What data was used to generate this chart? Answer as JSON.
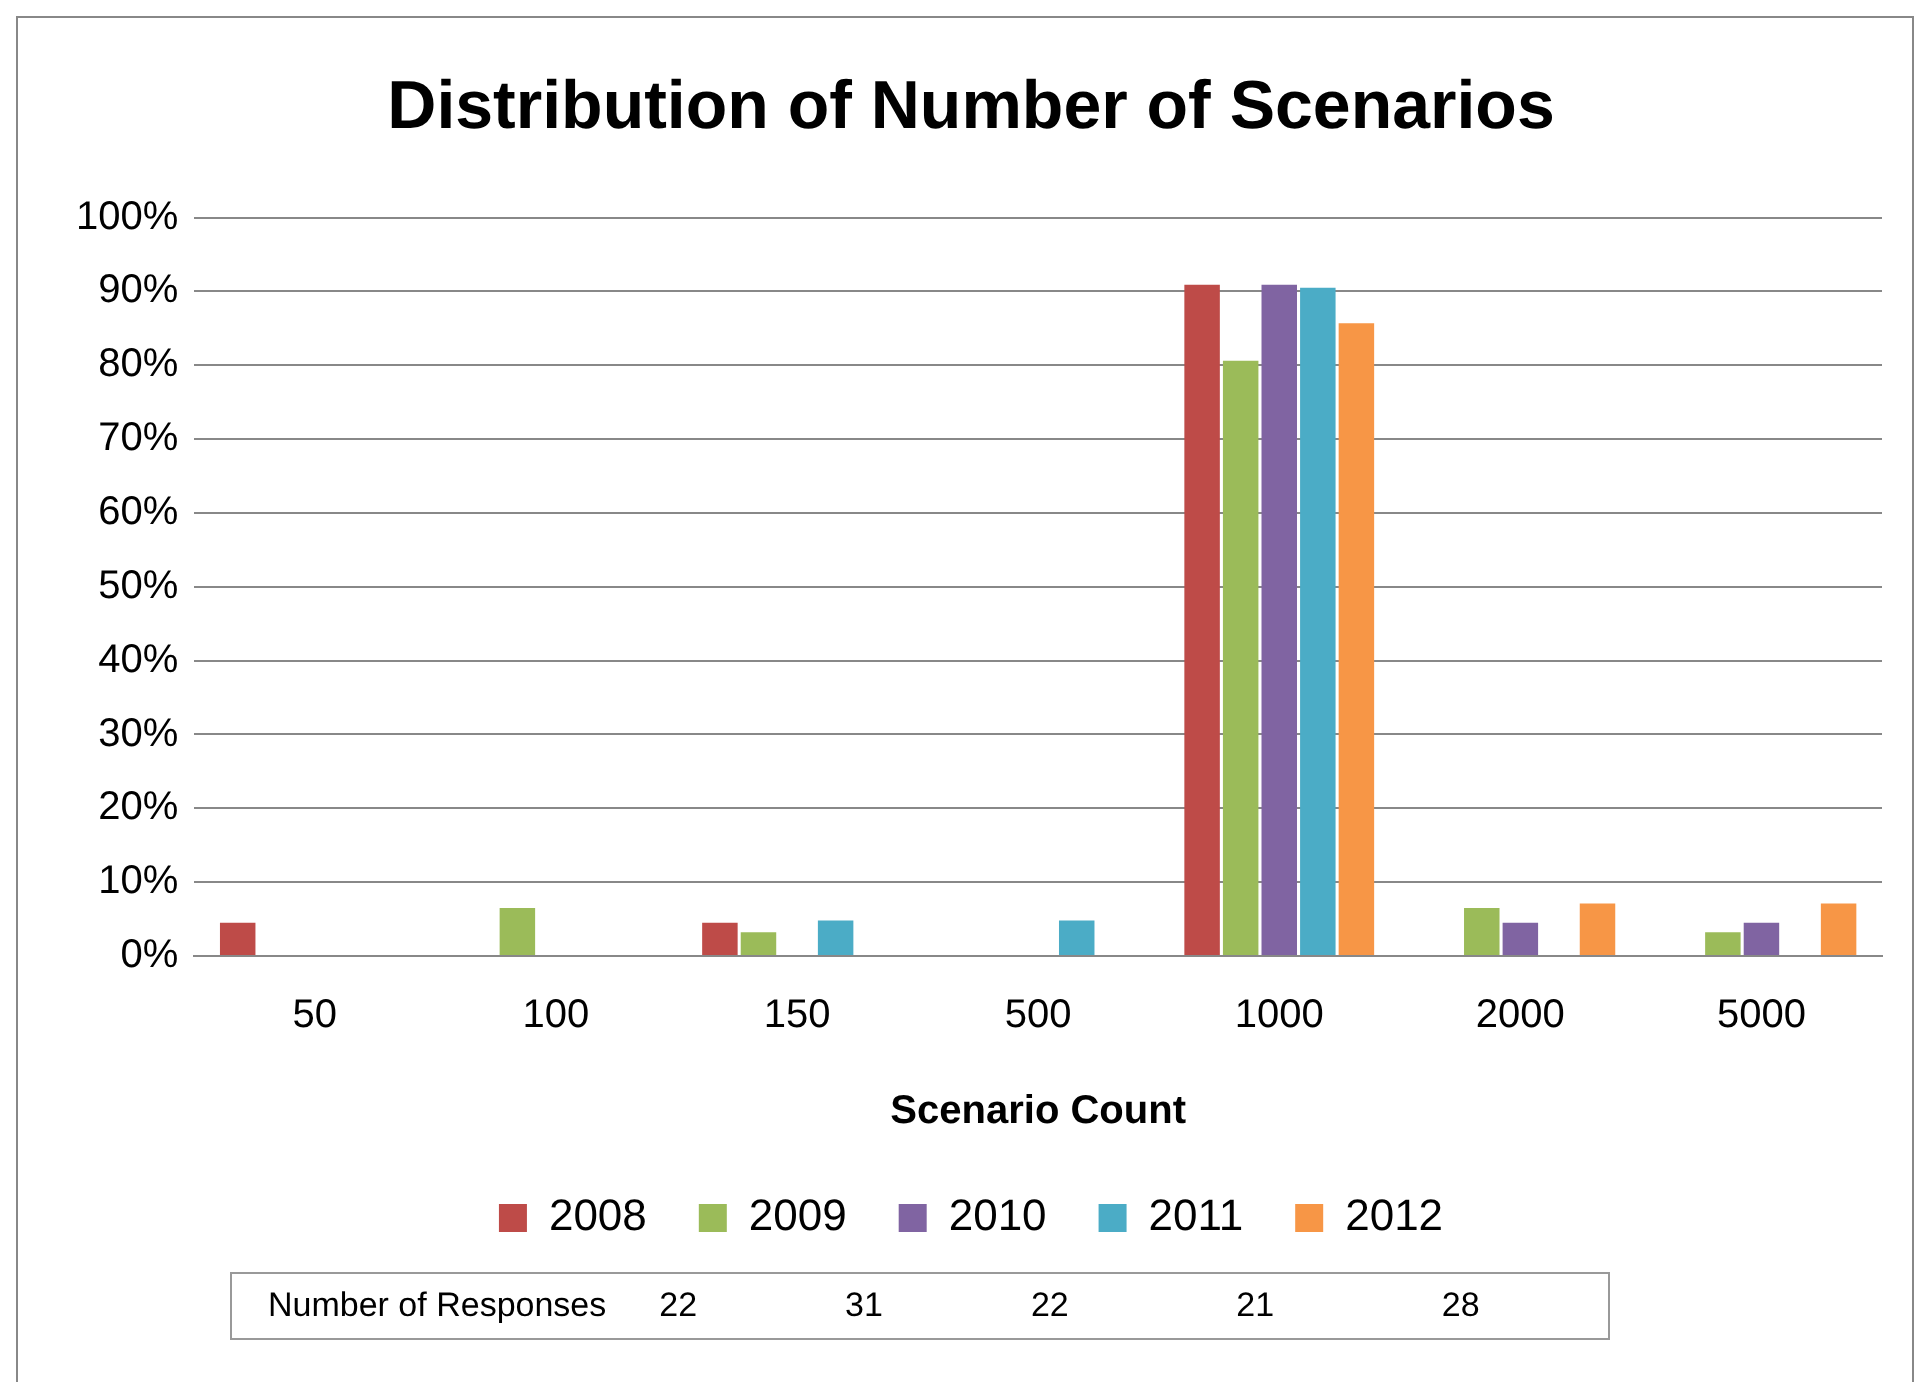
{
  "chart_data": {
    "type": "bar",
    "title": "Distribution of Number of Scenarios",
    "xlabel": "Scenario Count",
    "categories": [
      "50",
      "100",
      "150",
      "500",
      "1000",
      "2000",
      "5000"
    ],
    "series": [
      {
        "name": "2008",
        "color": "#be4b48",
        "values": [
          4.5,
          0,
          4.5,
          0,
          90.9,
          0,
          0
        ]
      },
      {
        "name": "2009",
        "color": "#9bbb59",
        "values": [
          0,
          6.5,
          3.2,
          0,
          80.6,
          6.5,
          3.2
        ]
      },
      {
        "name": "2010",
        "color": "#8064a2",
        "values": [
          0,
          0,
          0,
          0,
          90.9,
          4.5,
          4.5
        ]
      },
      {
        "name": "2011",
        "color": "#4bacc6",
        "values": [
          0,
          0,
          4.8,
          4.8,
          90.5,
          0,
          0
        ]
      },
      {
        "name": "2012",
        "color": "#f79646",
        "values": [
          0,
          0,
          0,
          0,
          85.7,
          7.1,
          7.1
        ]
      }
    ],
    "ylim": [
      0,
      100
    ],
    "yticks": [
      {
        "value": 0,
        "label": "0%"
      },
      {
        "value": 10,
        "label": "10%"
      },
      {
        "value": 20,
        "label": "20%"
      },
      {
        "value": 30,
        "label": "30%"
      },
      {
        "value": 40,
        "label": "40%"
      },
      {
        "value": 50,
        "label": "50%"
      },
      {
        "value": 60,
        "label": "60%"
      },
      {
        "value": 70,
        "label": "70%"
      },
      {
        "value": 80,
        "label": "80%"
      },
      {
        "value": 90,
        "label": "90%"
      },
      {
        "value": 100,
        "label": "100%"
      }
    ],
    "grid": "y",
    "legend": "bottom",
    "annotations": [
      "Number of Responses",
      "22",
      "31",
      "22",
      "21",
      "28"
    ]
  }
}
